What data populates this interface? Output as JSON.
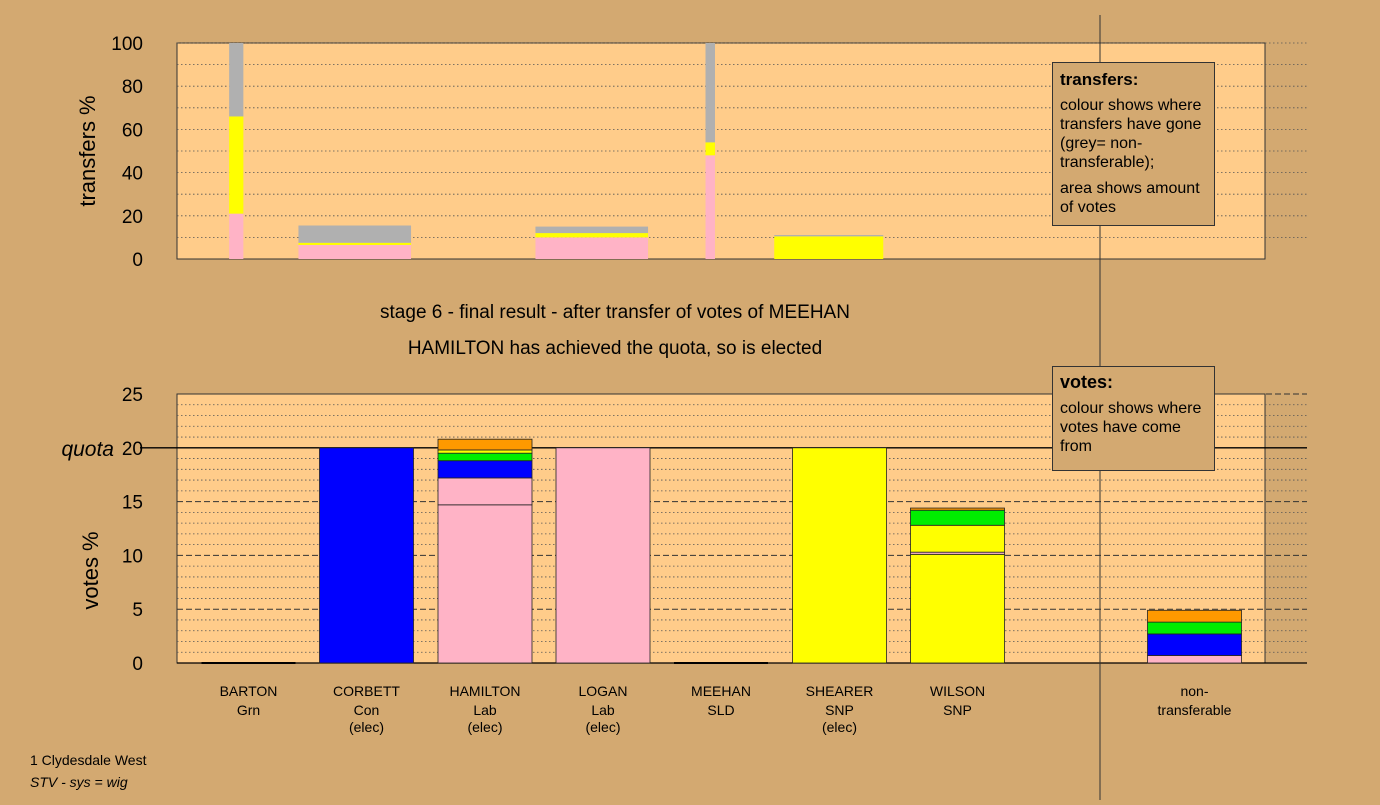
{
  "colors": {
    "background": "#d3a971",
    "plot_bg": "#ffcc8a",
    "party": {
      "Grn": "#00ee00",
      "Con": "#0000ff",
      "Lab": "#ffb3c6",
      "SLD": "#ff9900",
      "SNP": "#ffff00",
      "NT": "#b0b0b0"
    }
  },
  "titles": {
    "line1": "stage 6 - final result - after transfer of votes of MEEHAN",
    "line2": "HAMILTON has achieved the quota, so is elected"
  },
  "legend_transfers": {
    "title": "transfers:",
    "p1": "colour shows where transfers have gone (grey= non-transferable);",
    "p2": "area shows amount of votes"
  },
  "legend_votes": {
    "title": "votes:",
    "p1": "colour shows where votes have come from"
  },
  "footer": {
    "line1": "1 Clydesdale West",
    "line2": "STV - sys = wig"
  },
  "chart_data": [
    {
      "type": "bar",
      "subtype": "stacked-variable-width",
      "ylabel": "transfers %",
      "ylim": [
        0,
        100
      ],
      "yticks": [
        0,
        20,
        40,
        60,
        80,
        100
      ],
      "grid": "dotted",
      "bars": [
        {
          "x_center": 0.5,
          "width": 0.12,
          "segments": [
            {
              "party": "Lab",
              "value": 21
            },
            {
              "party": "SNP",
              "value": 45
            },
            {
              "party": "NT",
              "value": 34
            }
          ]
        },
        {
          "x_center": 1.5,
          "width": 0.95,
          "segments": [
            {
              "party": "Lab",
              "value": 6.5
            },
            {
              "party": "SNP",
              "value": 1
            },
            {
              "party": "NT",
              "value": 8
            }
          ]
        },
        {
          "x_center": 3.5,
          "width": 0.95,
          "segments": [
            {
              "party": "Lab",
              "value": 10
            },
            {
              "party": "SNP",
              "value": 2
            },
            {
              "party": "NT",
              "value": 3
            }
          ]
        },
        {
          "x_center": 4.5,
          "width": 0.08,
          "segments": [
            {
              "party": "Lab",
              "value": 48
            },
            {
              "party": "SNP",
              "value": 6
            },
            {
              "party": "NT",
              "value": 46
            }
          ]
        },
        {
          "x_center": 5.5,
          "width": 0.92,
          "segments": [
            {
              "party": "SNP",
              "value": 10.5
            },
            {
              "party": "NT",
              "value": 0.6
            }
          ]
        }
      ]
    },
    {
      "type": "bar",
      "subtype": "stacked",
      "ylabel": "votes %",
      "ylim": [
        0,
        25
      ],
      "yticks": [
        0,
        5,
        10,
        15,
        20,
        25
      ],
      "quota": 20,
      "quota_label": "quota",
      "grid": "dashed",
      "categories": [
        {
          "name": "BARTON",
          "party": "Grn",
          "status": ""
        },
        {
          "name": "CORBETT",
          "party": "Con",
          "status": "(elec)"
        },
        {
          "name": "HAMILTON",
          "party": "Lab",
          "status": "(elec)"
        },
        {
          "name": "LOGAN",
          "party": "Lab",
          "status": "(elec)"
        },
        {
          "name": "MEEHAN",
          "party": "SLD",
          "status": ""
        },
        {
          "name": "SHEARER",
          "party": "SNP",
          "status": "(elec)"
        },
        {
          "name": "WILSON",
          "party": "SNP",
          "status": ""
        },
        {
          "name": "non-",
          "party": "transferable",
          "status": ""
        }
      ],
      "stacks": [
        [],
        [
          {
            "party": "Con",
            "value": 20
          }
        ],
        [
          {
            "party": "Lab",
            "value": 14.7
          },
          {
            "party": "Lab",
            "value": 2.5
          },
          {
            "party": "Con",
            "value": 1.6
          },
          {
            "party": "Grn",
            "value": 0.7
          },
          {
            "party": "SNP",
            "value": 0.3
          },
          {
            "party": "SLD",
            "value": 1.0
          }
        ],
        [
          {
            "party": "Lab",
            "value": 20
          }
        ],
        [],
        [
          {
            "party": "SNP",
            "value": 20
          }
        ],
        [
          {
            "party": "SNP",
            "value": 10.1
          },
          {
            "party": "Lab",
            "value": 0.2
          },
          {
            "party": "SNP",
            "value": 2.5
          },
          {
            "party": "Grn",
            "value": 1.4
          },
          {
            "party": "SLD",
            "value": 0.2
          }
        ],
        [
          {
            "party": "Lab",
            "value": 0.7
          },
          {
            "party": "Con",
            "value": 2.0
          },
          {
            "party": "Grn",
            "value": 1.1
          },
          {
            "party": "SLD",
            "value": 1.1
          }
        ]
      ]
    }
  ]
}
